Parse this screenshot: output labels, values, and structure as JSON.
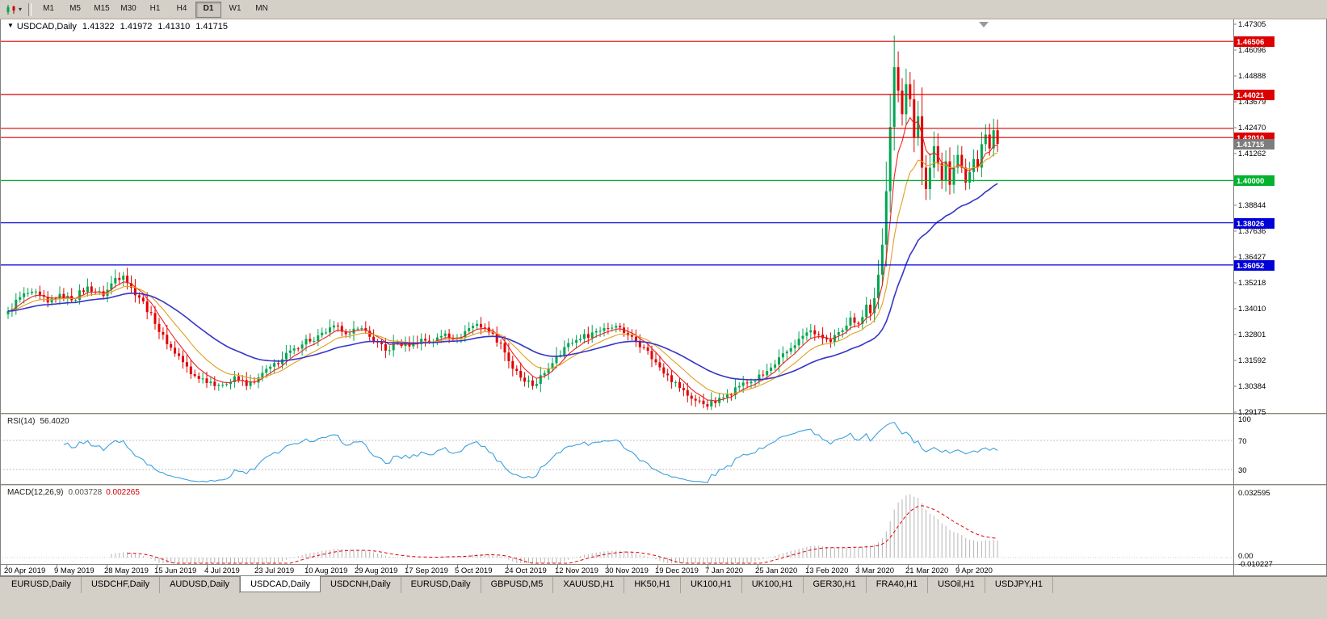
{
  "toolbar": {
    "timeframes": [
      "M1",
      "M5",
      "M15",
      "M30",
      "H1",
      "H4",
      "D1",
      "W1",
      "MN"
    ],
    "active_timeframe": "D1"
  },
  "chart_header": {
    "symbol": "USDCAD,Daily",
    "open": "1.41322",
    "high": "1.41972",
    "low": "1.41310",
    "close": "1.41715"
  },
  "indicator_labels": {
    "rsi_name": "RSI(14)",
    "rsi_value": "56.4020",
    "macd_name": "MACD(12,26,9)",
    "macd_value": "0.003728",
    "macd_signal": "0.002265"
  },
  "chart_data": {
    "type": "candlestick",
    "symbol": "USDCAD",
    "period": "Daily",
    "candle_count": 250,
    "last_close": 1.41715,
    "bull_color": "#00a651",
    "bear_color": "#e00000",
    "y_axis": {
      "min": 1.29175,
      "max": 1.47305,
      "tick_labels": [
        "1.47305",
        "1.46096",
        "1.44888",
        "1.43679",
        "1.42470",
        "1.41262",
        "1.40053",
        "1.38844",
        "1.37636",
        "1.36427",
        "1.35218",
        "1.34010",
        "1.32801",
        "1.31592",
        "1.30384",
        "1.29175"
      ]
    },
    "x_axis": {
      "tick_labels": [
        "20 Apr 2019",
        "9 May 2019",
        "28 May 2019",
        "15 Jun 2019",
        "4 Jul 2019",
        "23 Jul 2019",
        "10 Aug 2019",
        "29 Aug 2019",
        "17 Sep 2019",
        "5 Oct 2019",
        "24 Oct 2019",
        "12 Nov 2019",
        "30 Nov 2019",
        "19 Dec 2019",
        "7 Jan 2020",
        "25 Jan 2020",
        "13 Feb 2020",
        "3 Mar 2020",
        "21 Mar 2020",
        "9 Apr 2020"
      ]
    },
    "close_anchors": [
      [
        0,
        1.339
      ],
      [
        3,
        1.3455
      ],
      [
        6,
        1.348
      ],
      [
        10,
        1.343
      ],
      [
        13,
        1.347
      ],
      [
        16,
        1.344
      ],
      [
        20,
        1.3505
      ],
      [
        24,
        1.346
      ],
      [
        27,
        1.3545
      ],
      [
        29,
        1.3555
      ],
      [
        31,
        1.35
      ],
      [
        34,
        1.3435
      ],
      [
        37,
        1.333
      ],
      [
        40,
        1.3235
      ],
      [
        43,
        1.318
      ],
      [
        46,
        1.3095
      ],
      [
        49,
        1.3075
      ],
      [
        51,
        1.306
      ],
      [
        54,
        1.3045
      ],
      [
        57,
        1.3085
      ],
      [
        60,
        1.304
      ],
      [
        63,
        1.308
      ],
      [
        66,
        1.313
      ],
      [
        69,
        1.3165
      ],
      [
        72,
        1.3215
      ],
      [
        75,
        1.326
      ],
      [
        77,
        1.325
      ],
      [
        80,
        1.329
      ],
      [
        83,
        1.332
      ],
      [
        86,
        1.3285
      ],
      [
        89,
        1.331
      ],
      [
        92,
        1.325
      ],
      [
        95,
        1.3205
      ],
      [
        98,
        1.324
      ],
      [
        101,
        1.3225
      ],
      [
        104,
        1.326
      ],
      [
        107,
        1.3245
      ],
      [
        110,
        1.3285
      ],
      [
        113,
        1.3265
      ],
      [
        116,
        1.331
      ],
      [
        118,
        1.333
      ],
      [
        121,
        1.329
      ],
      [
        124,
        1.324
      ],
      [
        127,
        1.312
      ],
      [
        130,
        1.306
      ],
      [
        132,
        1.304
      ],
      [
        135,
        1.31
      ],
      [
        138,
        1.318
      ],
      [
        141,
        1.324
      ],
      [
        144,
        1.326
      ],
      [
        147,
        1.329
      ],
      [
        150,
        1.331
      ],
      [
        153,
        1.332
      ],
      [
        157,
        1.327
      ],
      [
        160,
        1.322
      ],
      [
        163,
        1.315
      ],
      [
        166,
        1.309
      ],
      [
        169,
        1.303
      ],
      [
        172,
        1.298
      ],
      [
        175,
        1.2955
      ],
      [
        178,
        1.296
      ],
      [
        181,
        1.3
      ],
      [
        184,
        1.304
      ],
      [
        187,
        1.306
      ],
      [
        190,
        1.309
      ],
      [
        193,
        1.314
      ],
      [
        196,
        1.32
      ],
      [
        199,
        1.326
      ],
      [
        202,
        1.33
      ],
      [
        204,
        1.328
      ],
      [
        207,
        1.3245
      ],
      [
        210,
        1.33
      ],
      [
        212,
        1.336
      ],
      [
        214,
        1.333
      ],
      [
        216,
        1.342
      ],
      [
        217,
        1.338
      ],
      [
        218,
        1.345
      ],
      [
        219,
        1.356
      ],
      [
        220,
        1.37
      ],
      [
        221,
        1.395
      ],
      [
        222,
        1.425
      ],
      [
        223,
        1.453
      ],
      [
        224,
        1.442
      ],
      [
        225,
        1.431
      ],
      [
        226,
        1.445
      ],
      [
        227,
        1.438
      ],
      [
        228,
        1.42
      ],
      [
        229,
        1.43
      ],
      [
        230,
        1.406
      ],
      [
        231,
        1.396
      ],
      [
        232,
        1.406
      ],
      [
        233,
        1.416
      ],
      [
        234,
        1.408
      ],
      [
        235,
        1.4
      ],
      [
        236,
        1.409
      ],
      [
        237,
        1.398
      ],
      [
        238,
        1.406
      ],
      [
        239,
        1.412
      ],
      [
        240,
        1.406
      ],
      [
        241,
        1.399
      ],
      [
        242,
        1.404
      ],
      [
        243,
        1.41
      ],
      [
        244,
        1.406
      ],
      [
        245,
        1.417
      ],
      [
        246,
        1.4215
      ],
      [
        247,
        1.415
      ],
      [
        248,
        1.4235
      ],
      [
        249,
        1.41715
      ]
    ],
    "moving_averages": [
      {
        "period": 6,
        "color": "#f02020"
      },
      {
        "period": 13,
        "color": "#e0a020"
      },
      {
        "period": 34,
        "color": "#3535c8"
      }
    ],
    "horizontal_levels": [
      {
        "price": 1.46506,
        "label": "1.46506",
        "color": "#dd0000",
        "tagged": true
      },
      {
        "price": 1.44021,
        "label": "1.44021",
        "color": "#dd0000",
        "tagged": true
      },
      {
        "price": 1.4244,
        "label": "1.42440",
        "color": "#dd0000",
        "tagged": false
      },
      {
        "price": 1.4201,
        "label": "1.42010",
        "color": "#dd0000",
        "tagged": true
      },
      {
        "price": 1.4,
        "label": "1.40000",
        "color": "#00b22d",
        "tagged": true
      },
      {
        "price": 1.38026,
        "label": "1.38026",
        "color": "#0000d8",
        "tagged": true
      },
      {
        "price": 1.36052,
        "label": "1.36052",
        "color": "#0000d8",
        "tagged": true
      }
    ],
    "current_price": {
      "value": 1.41715,
      "label": "1.41715",
      "tag_color": "#7d7d7d"
    },
    "rsi": {
      "period": 14,
      "current": 56.402,
      "levels": [
        70,
        30
      ],
      "axis_labels": [
        "100",
        "70",
        "30"
      ],
      "color": "#3da0dc"
    },
    "macd": {
      "fast": 12,
      "slow": 26,
      "signal": 9,
      "current_macd": 0.003728,
      "current_signal": 0.002265,
      "axis_labels": [
        "0.032595",
        "0.00",
        "-0.010227"
      ],
      "histogram_color": "#b4b4b4",
      "signal_color": "#e00000"
    }
  },
  "bottom_tabs": {
    "active_index": 3,
    "tabs": [
      "EURUSD,Daily",
      "USDCHF,Daily",
      "AUDUSD,Daily",
      "USDCAD,Daily",
      "USDCNH,Daily",
      "EURUSD,Daily",
      "GBPUSD,M5",
      "XAUUSD,H1",
      "HK50,H1",
      "UK100,H1",
      "UK100,H1",
      "GER30,H1",
      "FRA40,H1",
      "USOil,H1",
      "USDJPY,H1"
    ]
  }
}
